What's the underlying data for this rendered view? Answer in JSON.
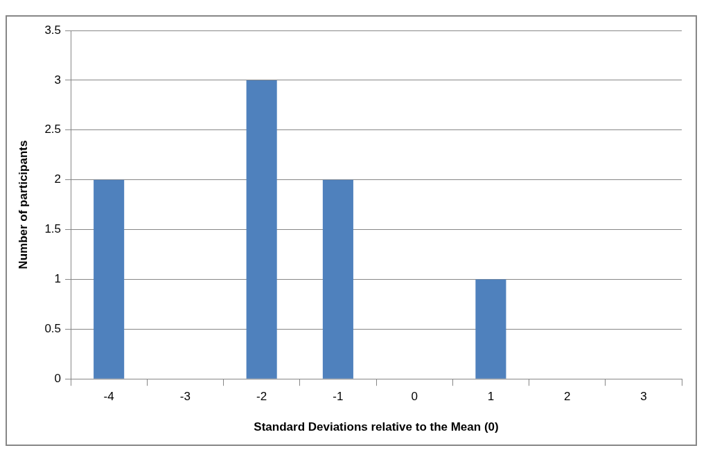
{
  "chart_data": {
    "type": "bar",
    "xlabel": "Standard Deviations relative to the Mean (0)",
    "ylabel": "Number of participants",
    "categories": [
      "-4",
      "-3",
      "-2",
      "-1",
      "0",
      "1",
      "2",
      "3"
    ],
    "values": [
      2,
      0,
      3,
      2,
      0,
      1,
      0,
      0
    ],
    "color": "#4f81bd",
    "ylim": [
      0,
      3.5
    ],
    "yticks": [
      0,
      0.5,
      1,
      1.5,
      2,
      2.5,
      3,
      3.5
    ],
    "grid": "y",
    "legend": false
  }
}
